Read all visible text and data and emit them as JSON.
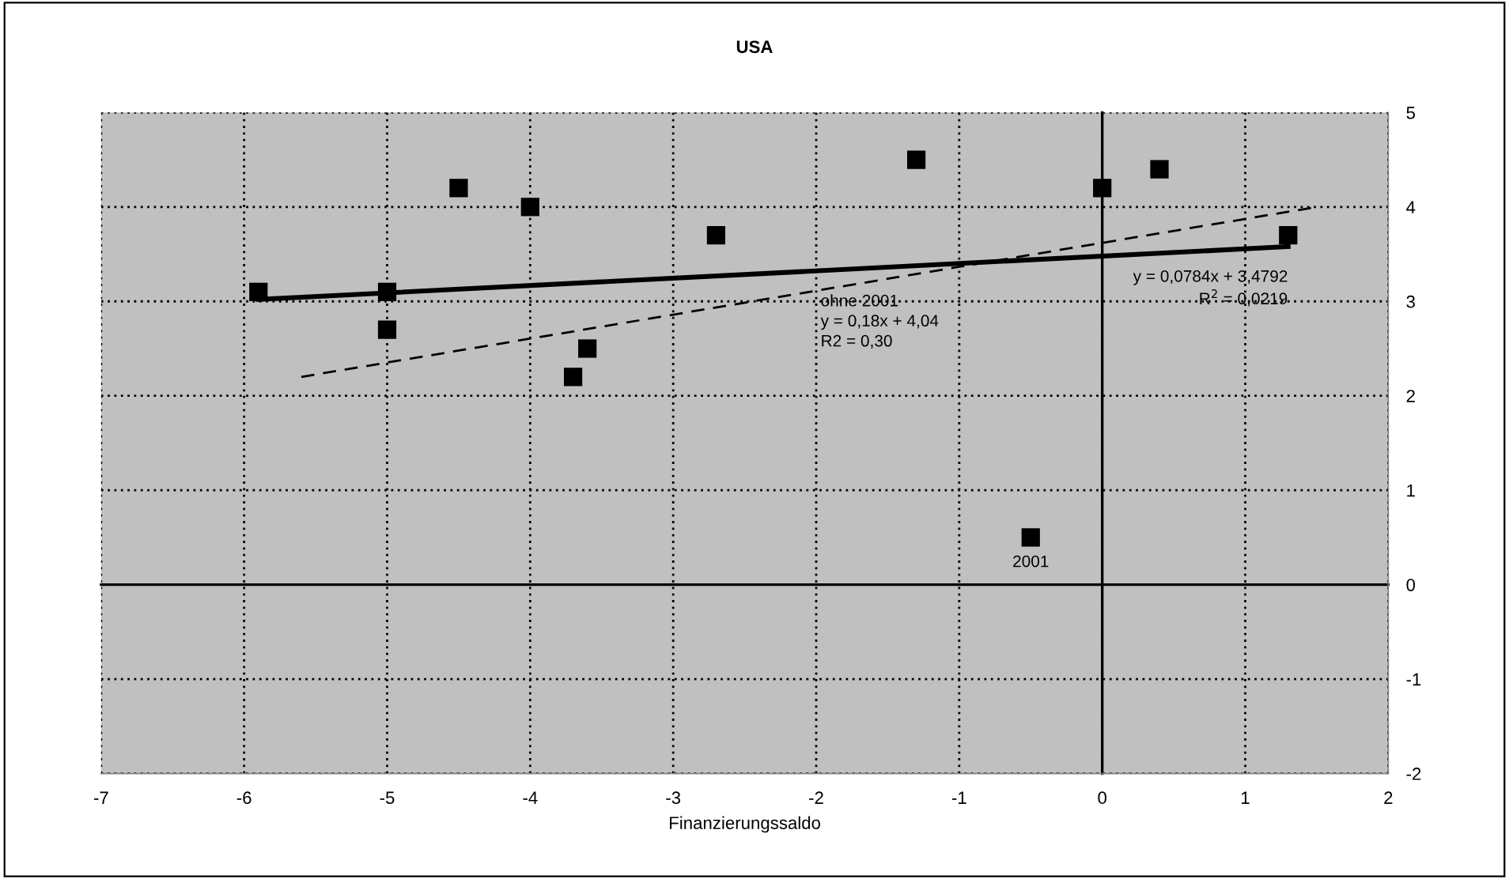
{
  "chart_data": {
    "type": "scatter",
    "title": "USA",
    "xlabel": "Finanzierungssaldo",
    "xlim": [
      -7,
      2
    ],
    "xticks": [
      -7,
      -6,
      -5,
      -4,
      -3,
      -2,
      -1,
      0,
      1,
      2
    ],
    "ylim": [
      -2,
      5
    ],
    "yticks": [
      -2,
      -1,
      0,
      1,
      2,
      3,
      4,
      5
    ],
    "grid": true,
    "series": [
      {
        "marker": "square",
        "color": "#000000",
        "x": [
          -5.9,
          -5.0,
          -5.0,
          -4.5,
          -4.0,
          -3.7,
          -3.6,
          -2.7,
          -1.3,
          -0.5,
          0.0,
          0.4,
          1.3
        ],
        "values": [
          3.1,
          3.1,
          2.7,
          4.2,
          4.0,
          2.2,
          2.5,
          3.7,
          4.5,
          0.5,
          4.2,
          4.4,
          3.7
        ]
      },
      {
        "type": "line",
        "color": "#000000",
        "line_style": "solid",
        "x": [
          -5.9,
          1.3
        ],
        "values": [
          3.02,
          3.58
        ]
      },
      {
        "type": "line",
        "color": "#000000",
        "line_style": "dashed",
        "x": [
          -5.6,
          1.5
        ],
        "values": [
          2.2,
          4.0
        ]
      }
    ],
    "annotations": [
      "ohne 2001\ny = 0,18x + 4,04\nR2 = 0,30",
      "y = 0,0784x + 3,4792\nR$^{2}$ = 0,0219",
      {
        "text": "2001",
        "x": -0.5,
        "y": 0.5
      }
    ]
  }
}
